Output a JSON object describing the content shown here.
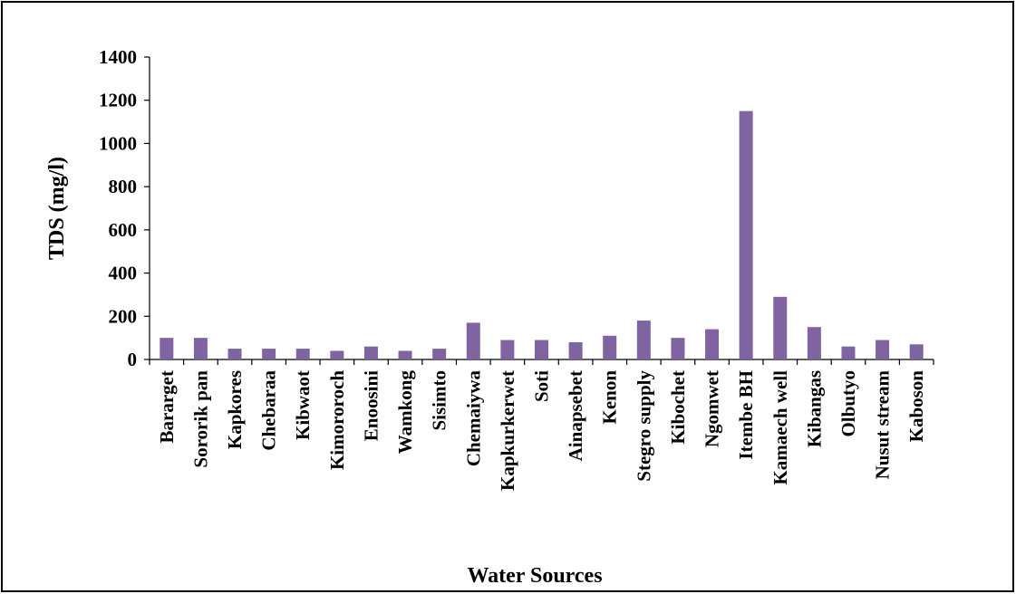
{
  "chart_data": {
    "type": "bar",
    "x_label": "Water Sources",
    "y_label": "TDS (mg/l)",
    "categories": [
      "Bararget",
      "Sororik pan",
      "Kapkores",
      "Chebaraa",
      "Kibwaot",
      "Kimororoch",
      "Enoosini",
      "Wamkong",
      "Sisimto",
      "Chemaiywa",
      "Kapkurkerwet",
      "Soti",
      "Ainapsebet",
      "Kenon",
      "Stegro supply",
      "Kibochet",
      "Ngomwet",
      "Itembe BH",
      "Kamaech well",
      "Kibangas",
      "Olbutyo",
      "Nusut stream",
      "Kaboson"
    ],
    "values": [
      100,
      100,
      50,
      50,
      50,
      40,
      60,
      40,
      50,
      170,
      90,
      90,
      80,
      110,
      180,
      100,
      140,
      1150,
      290,
      150,
      60,
      90,
      70
    ],
    "color": "#8064a2",
    "ylim": [
      0,
      1400
    ],
    "yticks": [
      0,
      200,
      400,
      600,
      800,
      1000,
      1200,
      1400
    ],
    "grid": false
  }
}
